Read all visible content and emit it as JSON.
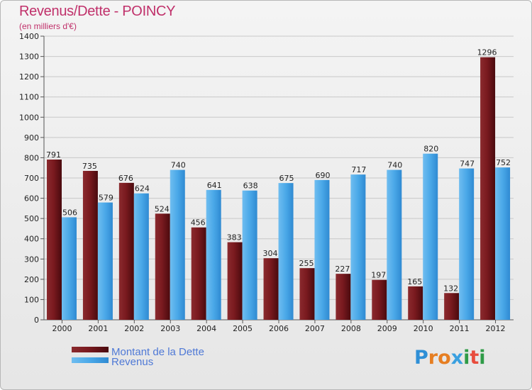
{
  "title": "Revenus/Dette - POINCY",
  "subtitle": "(en milliers d'€)",
  "chart_data": {
    "type": "bar",
    "title": "Revenus/Dette - POINCY",
    "ylabel": "(en milliers d'€)",
    "xlabel": "",
    "ylim": [
      0,
      1400
    ],
    "yticks": [
      0,
      100,
      200,
      300,
      400,
      500,
      600,
      700,
      800,
      900,
      1000,
      1100,
      1200,
      1300,
      1400
    ],
    "grid": true,
    "categories": [
      "2000",
      "2001",
      "2002",
      "2003",
      "2004",
      "2005",
      "2006",
      "2007",
      "2008",
      "2009",
      "2010",
      "2011",
      "2012"
    ],
    "series": [
      {
        "name": "Montant de la Dette",
        "color": "#7a1a1f",
        "values": [
          791,
          735,
          676,
          524,
          456,
          383,
          304,
          255,
          227,
          197,
          165,
          132,
          1296
        ]
      },
      {
        "name": "Revenus",
        "color": "#3d9ee3",
        "values": [
          506,
          579,
          624,
          740,
          641,
          638,
          675,
          690,
          717,
          740,
          820,
          747,
          752
        ]
      }
    ],
    "legend_position": "bottom-left"
  },
  "logo": {
    "letters": [
      "P",
      "r",
      "o",
      "x",
      "i",
      "t",
      "i"
    ],
    "colors": [
      "#2e8fd6",
      "#e67e22",
      "#e67e22",
      "#3aa0e0",
      "#2f9b47",
      "#e84c3d",
      "#2f9b47"
    ]
  }
}
